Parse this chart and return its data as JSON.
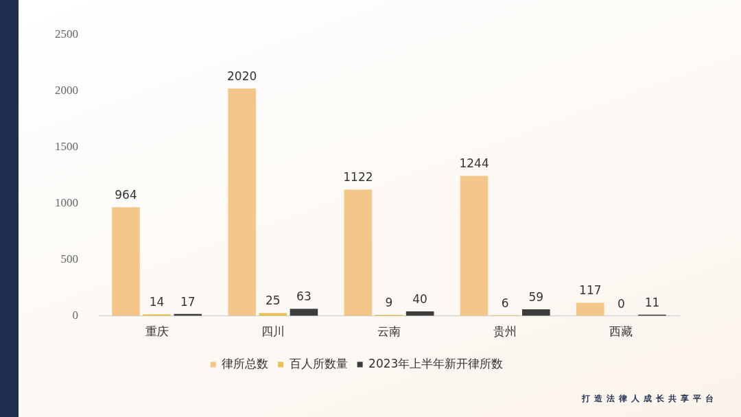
{
  "chart_data": {
    "type": "bar",
    "categories": [
      "重庆",
      "四川",
      "云南",
      "贵州",
      "西藏"
    ],
    "series": [
      {
        "name": "律所总数",
        "color": "#f5c68a",
        "values": [
          964,
          2020,
          1122,
          1244,
          117
        ]
      },
      {
        "name": "百人所数量",
        "color": "#ebc254",
        "values": [
          14,
          25,
          9,
          6,
          0
        ]
      },
      {
        "name": "2023年上半年新开律所数",
        "color": "#3c3c3c",
        "values": [
          17,
          63,
          40,
          59,
          11
        ]
      }
    ],
    "ylim": [
      0,
      2500
    ],
    "yticks": [
      0,
      500,
      1000,
      1500,
      2000,
      2500
    ],
    "grid": false,
    "legend": "bottom",
    "data_labels": true,
    "annotations": [
      "打造法律人成长共享平台"
    ]
  }
}
